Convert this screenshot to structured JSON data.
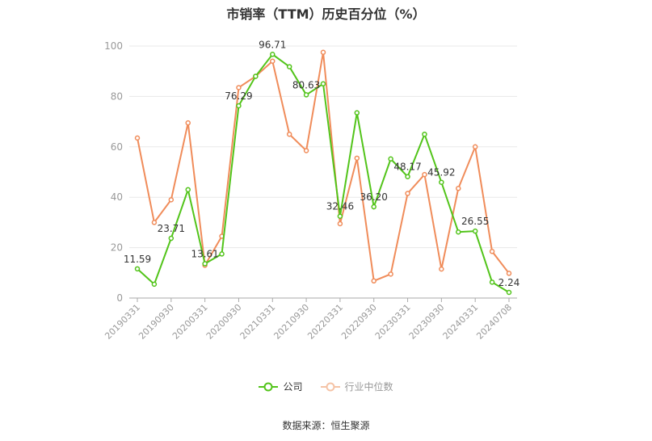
{
  "chart_data": {
    "type": "line",
    "title": "市销率（TTM）历史百分位（%）",
    "xlabel": "",
    "ylabel": "",
    "ylim": [
      0,
      100
    ],
    "yticks": [
      0,
      20,
      40,
      60,
      80,
      100
    ],
    "x": [
      "20190331",
      "20190630",
      "20190930",
      "20191231",
      "20200331",
      "20200630",
      "20200930",
      "20201231",
      "20210331",
      "20210630",
      "20210930",
      "20211231",
      "20220331",
      "20220630",
      "20220930",
      "20221231",
      "20230331",
      "20230630",
      "20230930",
      "20231231",
      "20240331",
      "20240630",
      "20240708"
    ],
    "x_tick_labels": [
      "20190331",
      "20190930",
      "20200331",
      "20200930",
      "20210331",
      "20210930",
      "20220331",
      "20220930",
      "20230331",
      "20230930",
      "20240331",
      "20240708"
    ],
    "series": [
      {
        "name": "公司",
        "color": "#52c41a",
        "values": [
          11.59,
          5.5,
          23.71,
          43.0,
          13.61,
          17.5,
          76.29,
          88.0,
          96.71,
          91.8,
          80.63,
          85.0,
          32.46,
          73.5,
          36.2,
          55.2,
          48.17,
          65.0,
          45.92,
          26.2,
          26.55,
          6.3,
          2.24
        ],
        "labels": {
          "0": "11.59",
          "2": "23.71",
          "4": "13.61",
          "6": "76.29",
          "8": "96.71",
          "10": "80.63",
          "12": "32.46",
          "14": "36.20",
          "16": "48.17",
          "18": "45.92",
          "20": "26.55",
          "22": "2.24"
        }
      },
      {
        "name": "行业中位数",
        "color": "#f08c5a",
        "values": [
          63.5,
          30.0,
          39.0,
          69.5,
          13.0,
          24.5,
          83.5,
          88.0,
          94.0,
          65.0,
          58.5,
          97.5,
          29.5,
          55.5,
          6.8,
          9.5,
          41.5,
          49.0,
          11.5,
          43.5,
          60.0,
          18.5,
          9.8
        ]
      }
    ],
    "grid": true,
    "legend_position": "bottom-center"
  },
  "legend": {
    "company": "公司",
    "industry": "行业中位数"
  },
  "source": "数据来源：恒生聚源"
}
